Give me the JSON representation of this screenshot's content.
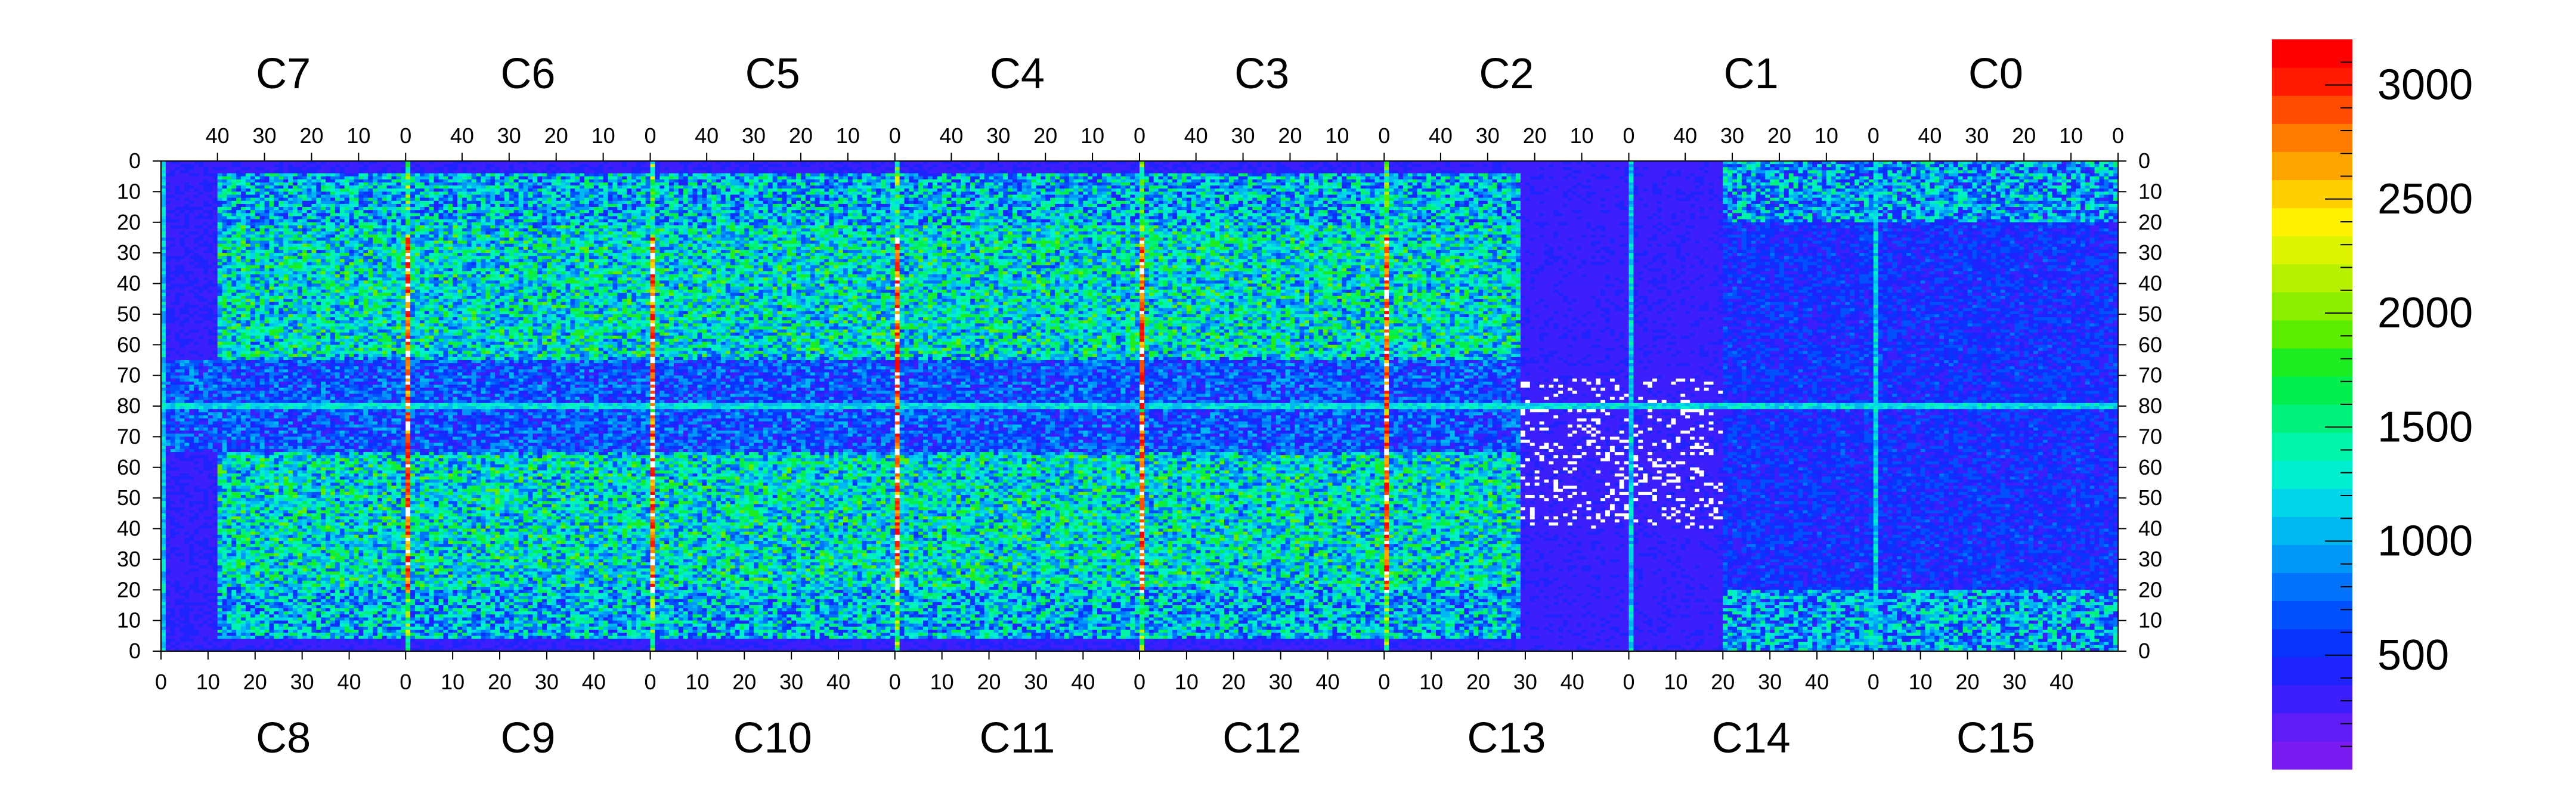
{
  "chart_data": {
    "type": "heatmap",
    "title": "",
    "top_chips": [
      "C7",
      "C6",
      "C5",
      "C4",
      "C3",
      "C2",
      "C1",
      "C0"
    ],
    "bottom_chips": [
      "C8",
      "C9",
      "C10",
      "C11",
      "C12",
      "C13",
      "C14",
      "C15"
    ],
    "top_x_ticks": [
      "40",
      "30",
      "20",
      "10",
      "0"
    ],
    "bottom_x_ticks": [
      "0",
      "10",
      "20",
      "30",
      "40"
    ],
    "top_x_tick_values": [
      40,
      30,
      20,
      10,
      0
    ],
    "bottom_x_tick_values": [
      0,
      10,
      20,
      30,
      40
    ],
    "top_y_ticks": [
      "0",
      "10",
      "20",
      "30",
      "40",
      "50",
      "60",
      "70",
      "80"
    ],
    "bottom_y_ticks": [
      "70",
      "60",
      "50",
      "40",
      "30",
      "20",
      "10",
      "0"
    ],
    "top_y_tick_values": [
      0,
      10,
      20,
      30,
      40,
      50,
      60,
      70,
      80
    ],
    "bottom_y_tick_values": [
      70,
      60,
      50,
      40,
      30,
      20,
      10,
      0
    ],
    "columns_per_chip": 52,
    "rows_per_half": 80,
    "colorbar": {
      "ticks": [
        "500",
        "1000",
        "1500",
        "2000",
        "2500",
        "3000"
      ],
      "tick_values": [
        500,
        1000,
        1500,
        2000,
        2500,
        3000
      ],
      "zmin": 0,
      "zmax": 3200,
      "palette": [
        "#7a1bf2",
        "#5f1cf7",
        "#3d1ffb",
        "#1f23fd",
        "#0b33fe",
        "#0050fe",
        "#0072fc",
        "#0097f7",
        "#00b8f0",
        "#00d6e8",
        "#00efcf",
        "#00f5a8",
        "#00f27c",
        "#00ef4f",
        "#1ced20",
        "#5ced00",
        "#8cef00",
        "#b7f100",
        "#ddf400",
        "#fff100",
        "#ffcf00",
        "#ffa500",
        "#ff7c00",
        "#ff4c00",
        "#ff1a00",
        "#ff0000"
      ]
    },
    "regions": {
      "background_level": 250,
      "hot_columns_level": 2900,
      "bright_pixel_level": 3300,
      "chip_central_band_level": 280,
      "c2_c13_cluster": "values above colorbar maximum (white)"
    }
  }
}
